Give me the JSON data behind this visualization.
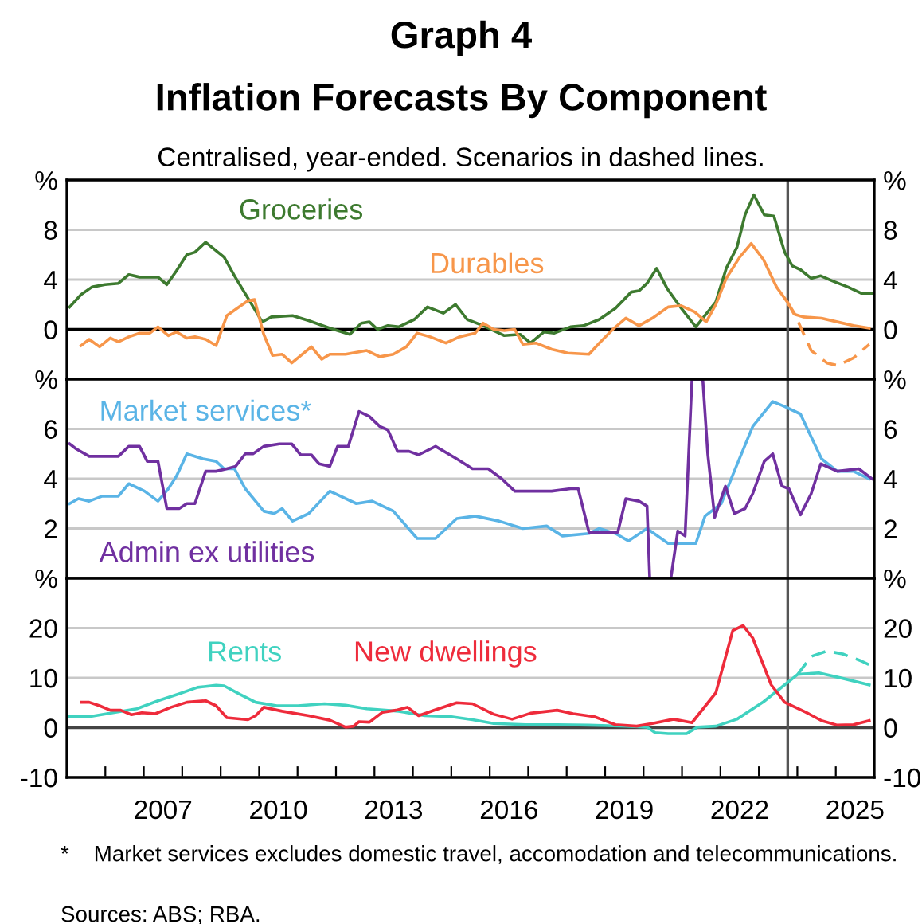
{
  "chart_data": [
    {
      "type": "line",
      "title": "Graph 4\nInflation Forecasts By Component",
      "subtitle": "Centralised, year-ended. Scenarios in dashed lines.",
      "xlim": [
        2005.0,
        2026.0
      ],
      "ylim": [
        -4,
        12
      ],
      "yticks": [
        0,
        4,
        8,
        {
          "value": 12,
          "label": "%"
        }
      ],
      "y2lim": [
        -4,
        12
      ],
      "y2ticks": [
        0,
        4,
        8,
        {
          "value": 12,
          "label": "%"
        }
      ],
      "tick_labels": "y",
      "grid": "y",
      "legend": false,
      "ref_lines": [
        {
          "axis": "y",
          "value": 0,
          "color": "#000000"
        },
        {
          "axis": "x",
          "value": 2023.75,
          "color": "#555555"
        }
      ],
      "series": [
        {
          "name": "Groceries",
          "color": "#3d7a2f",
          "x": [
            2005.07,
            2005.37,
            2005.65,
            2005.99,
            2006.34,
            2006.61,
            2006.89,
            2007.37,
            2007.6,
            2007.85,
            2008.12,
            2008.33,
            2008.61,
            2009.09,
            2009.36,
            2009.77,
            2010.08,
            2010.32,
            2010.87,
            2011.29,
            2011.84,
            2012.36,
            2012.66,
            2012.87,
            2013.08,
            2013.35,
            2013.63,
            2014.04,
            2014.38,
            2014.79,
            2015.11,
            2015.41,
            2015.83,
            2016.38,
            2016.79,
            2017.06,
            2017.41,
            2017.68,
            2018.1,
            2018.44,
            2018.85,
            2019.27,
            2019.68,
            2019.88,
            2020.09,
            2020.34,
            2020.61,
            2020.98,
            2021.36,
            2021.67,
            2021.88,
            2022.15,
            2022.43,
            2022.64,
            2022.87,
            2023.14,
            2023.39,
            2023.67,
            2023.87,
            2024.08,
            2024.36,
            2024.61,
            2024.91,
            2025.32,
            2025.66,
            2025.94
          ],
          "values": [
            1.8,
            2.8,
            3.4,
            3.6,
            3.7,
            4.4,
            4.2,
            4.2,
            3.6,
            4.7,
            6.0,
            6.2,
            7.0,
            5.8,
            4.3,
            2.2,
            0.6,
            1.0,
            1.1,
            0.7,
            0.1,
            -0.4,
            0.5,
            0.6,
            0.0,
            0.3,
            0.2,
            0.8,
            1.8,
            1.3,
            2.0,
            0.8,
            0.3,
            -0.5,
            -0.4,
            -1.1,
            -0.2,
            -0.3,
            0.2,
            0.3,
            0.8,
            1.7,
            3.0,
            3.1,
            3.7,
            4.9,
            3.3,
            1.7,
            0.2,
            1.4,
            2.2,
            4.9,
            6.6,
            9.2,
            10.8,
            9.2,
            9.1,
            6.2,
            5.1,
            4.8,
            4.1,
            4.3,
            3.9,
            3.4,
            2.9,
            2.9
          ]
        },
        {
          "name": "Durables",
          "color": "#f7964a",
          "x": [
            2005.37,
            2005.58,
            2005.85,
            2006.13,
            2006.34,
            2006.61,
            2006.89,
            2007.16,
            2007.37,
            2007.64,
            2007.85,
            2008.12,
            2008.33,
            2008.61,
            2008.88,
            2009.16,
            2009.43,
            2009.71,
            2009.88,
            2010.12,
            2010.35,
            2010.6,
            2010.85,
            2011.36,
            2011.63,
            2011.84,
            2012.25,
            2012.8,
            2013.14,
            2013.49,
            2013.83,
            2014.11,
            2014.45,
            2014.86,
            2015.21,
            2015.62,
            2015.83,
            2016.1,
            2016.38,
            2016.65,
            2016.86,
            2017.2,
            2017.61,
            2018.03,
            2018.58,
            2018.85,
            2019.2,
            2019.54,
            2019.88,
            2020.23,
            2020.64,
            2020.98,
            2021.33,
            2021.63,
            2021.88,
            2022.15,
            2022.5,
            2022.8,
            2023.12,
            2023.46,
            2023.74,
            2023.94,
            2024.15,
            2024.63,
            2025.04,
            2025.46,
            2025.87
          ],
          "values": [
            -1.3,
            -0.8,
            -1.4,
            -0.7,
            -1.0,
            -0.6,
            -0.3,
            -0.3,
            0.2,
            -0.5,
            -0.2,
            -0.7,
            -0.6,
            -0.8,
            -1.3,
            1.1,
            1.7,
            2.3,
            2.4,
            -0.4,
            -2.1,
            -2.0,
            -2.7,
            -1.4,
            -2.4,
            -2.0,
            -2.0,
            -1.7,
            -2.2,
            -2.0,
            -1.4,
            -0.3,
            -0.6,
            -1.1,
            -0.6,
            -0.3,
            0.5,
            0.0,
            -0.1,
            0.0,
            -1.2,
            -1.1,
            -1.6,
            -1.9,
            -2.0,
            -1.1,
            0.0,
            0.9,
            0.3,
            0.9,
            1.8,
            1.9,
            1.4,
            0.6,
            2.0,
            4.1,
            5.8,
            6.9,
            5.6,
            3.4,
            2.2,
            1.2,
            1.0,
            0.9,
            0.6,
            0.3,
            0.1
          ]
        },
        {
          "color": "#f7964a",
          "line_style": "dashed",
          "x": [
            2023.74,
            2024.01,
            2024.36,
            2024.77,
            2025.04,
            2025.46,
            2025.87
          ],
          "values": [
            2.2,
            0.7,
            -1.7,
            -2.7,
            -2.9,
            -2.3,
            -1.2
          ]
        }
      ]
    },
    {
      "type": "line",
      "xlim": [
        2005.0,
        2026.0
      ],
      "ylim": [
        0,
        8
      ],
      "yticks": [
        2,
        4,
        6,
        {
          "value": 8,
          "label": "%"
        }
      ],
      "y2lim": [
        0,
        8
      ],
      "y2ticks": [
        2,
        4,
        6,
        {
          "value": 8,
          "label": "%"
        }
      ],
      "tick_labels": "y",
      "grid": "y",
      "legend": false,
      "ref_lines": [
        {
          "axis": "x",
          "value": 2023.75,
          "color": "#555555"
        }
      ],
      "series": [
        {
          "name": "Market services*",
          "color": "#5ab4e6",
          "x": [
            2005.07,
            2005.3,
            2005.58,
            2005.92,
            2006.34,
            2006.61,
            2007.02,
            2007.37,
            2007.64,
            2007.85,
            2008.12,
            2008.54,
            2008.88,
            2009.09,
            2009.36,
            2009.64,
            2010.12,
            2010.39,
            2010.6,
            2010.87,
            2011.29,
            2011.84,
            2012.53,
            2012.94,
            2013.49,
            2014.11,
            2014.59,
            2015.14,
            2015.62,
            2016.24,
            2016.86,
            2017.48,
            2017.89,
            2018.58,
            2018.85,
            2019.27,
            2019.61,
            2020.09,
            2020.64,
            2020.98,
            2021.36,
            2021.6,
            2022.02,
            2022.36,
            2022.84,
            2023.36,
            2023.67,
            2024.08,
            2024.63,
            2025.04,
            2025.46,
            2025.87
          ],
          "values": [
            3.0,
            3.2,
            3.1,
            3.3,
            3.3,
            3.8,
            3.5,
            3.1,
            3.6,
            4.1,
            5.0,
            4.8,
            4.7,
            4.4,
            4.4,
            3.6,
            2.7,
            2.6,
            2.8,
            2.3,
            2.6,
            3.5,
            3.0,
            3.1,
            2.7,
            1.6,
            1.6,
            2.4,
            2.5,
            2.3,
            2.0,
            2.1,
            1.7,
            1.8,
            2.0,
            1.8,
            1.5,
            2.0,
            1.4,
            1.4,
            1.4,
            2.5,
            3.0,
            4.3,
            6.1,
            7.1,
            6.9,
            6.6,
            4.8,
            4.3,
            4.3,
            4.0
          ]
        },
        {
          "name": "Admin ex utilities",
          "color": "#7030a0",
          "x": [
            2005.07,
            2005.24,
            2005.58,
            2005.99,
            2006.34,
            2006.61,
            2006.89,
            2007.09,
            2007.37,
            2007.6,
            2007.92,
            2008.12,
            2008.33,
            2008.61,
            2008.88,
            2009.16,
            2009.39,
            2009.64,
            2009.84,
            2010.12,
            2010.53,
            2010.85,
            2011.08,
            2011.36,
            2011.56,
            2011.84,
            2012.04,
            2012.32,
            2012.6,
            2012.87,
            2013.14,
            2013.35,
            2013.6,
            2013.9,
            2014.15,
            2014.59,
            2015.14,
            2015.55,
            2015.96,
            2016.31,
            2016.65,
            2017.06,
            2017.61,
            2018.1,
            2018.3,
            2018.58,
            2019.33,
            2019.54,
            2019.88,
            2020.09,
            2020.16,
            2020.71,
            2020.89,
            2021.08,
            2021.26,
            2021.54,
            2021.67,
            2021.85,
            2022.13,
            2022.36,
            2022.64,
            2022.84,
            2023.14,
            2023.36,
            2023.6,
            2023.78,
            2024.08,
            2024.36,
            2024.61,
            2025.04,
            2025.6,
            2025.94
          ],
          "values": [
            5.4,
            5.2,
            4.9,
            4.9,
            4.9,
            5.3,
            5.3,
            4.7,
            4.7,
            2.8,
            2.8,
            3.0,
            3.0,
            4.3,
            4.3,
            4.4,
            4.5,
            5.0,
            5.0,
            5.3,
            5.4,
            5.4,
            4.96,
            4.96,
            4.6,
            4.5,
            5.3,
            5.3,
            6.7,
            6.5,
            6.1,
            5.96,
            5.1,
            5.1,
            4.96,
            5.3,
            4.8,
            4.4,
            4.4,
            4.0,
            3.5,
            3.5,
            3.5,
            3.6,
            3.6,
            1.85,
            1.85,
            3.2,
            3.1,
            2.9,
            0.0,
            0.0,
            1.9,
            1.7,
            8.0,
            8.0,
            5.0,
            2.45,
            3.7,
            2.6,
            2.8,
            3.4,
            4.7,
            5.0,
            3.7,
            3.6,
            2.55,
            3.4,
            4.6,
            4.3,
            4.4,
            4.0
          ]
        }
      ]
    },
    {
      "type": "line",
      "xlim": [
        2005.0,
        2026.0
      ],
      "ylim": [
        -10,
        30
      ],
      "yticks": [
        -10,
        0,
        10,
        20,
        {
          "value": 30,
          "label": "%"
        }
      ],
      "y2lim": [
        -10,
        30
      ],
      "y2ticks": [
        -10,
        0,
        10,
        20,
        {
          "value": 30,
          "label": "%"
        }
      ],
      "xticks": [
        {
          "value": 2006,
          "label": null
        },
        {
          "value": 2007,
          "label": null
        },
        {
          "value": 2007.5,
          "label": "2007"
        },
        {
          "value": 2008,
          "label": null
        },
        {
          "value": 2009,
          "label": null
        },
        {
          "value": 2010,
          "label": null
        },
        {
          "value": 2010.5,
          "label": "2010"
        },
        {
          "value": 2011,
          "label": null
        },
        {
          "value": 2012,
          "label": null
        },
        {
          "value": 2013,
          "label": null
        },
        {
          "value": 2013.5,
          "label": "2013"
        },
        {
          "value": 2014,
          "label": null
        },
        {
          "value": 2015,
          "label": null
        },
        {
          "value": 2016,
          "label": null
        },
        {
          "value": 2016.5,
          "label": "2016"
        },
        {
          "value": 2017,
          "label": null
        },
        {
          "value": 2018,
          "label": null
        },
        {
          "value": 2019,
          "label": null
        },
        {
          "value": 2019.5,
          "label": "2019"
        },
        {
          "value": 2020,
          "label": null
        },
        {
          "value": 2021,
          "label": null
        },
        {
          "value": 2022,
          "label": null
        },
        {
          "value": 2022.5,
          "label": "2022"
        },
        {
          "value": 2023,
          "label": null
        },
        {
          "value": 2024,
          "label": null
        },
        {
          "value": 2025,
          "label": null
        },
        {
          "value": 2025.5,
          "label": "2025"
        }
      ],
      "grid": "y",
      "legend": false,
      "ref_lines": [
        {
          "axis": "y",
          "value": 0,
          "color": "#444444"
        },
        {
          "axis": "x",
          "value": 2023.75,
          "color": "#555555"
        }
      ],
      "annotations": [
        "*    Market services excludes domestic travel, accomodation and telecommunications.",
        "Sources: ABS; RBA."
      ],
      "series": [
        {
          "name": "Rents",
          "color": "#40d2c0",
          "x": [
            2005.07,
            2005.58,
            2006.2,
            2006.82,
            2007.37,
            2007.92,
            2008.4,
            2008.88,
            2009.09,
            2009.5,
            2009.91,
            2010.46,
            2011.01,
            2011.7,
            2012.25,
            2012.8,
            2013.63,
            2014.31,
            2015.0,
            2015.55,
            2016.1,
            2016.93,
            2017.75,
            2018.58,
            2019.54,
            2020.09,
            2020.3,
            2020.64,
            2021.12,
            2021.4,
            2021.88,
            2022.43,
            2023.12,
            2023.67,
            2024.01,
            2024.56,
            2025.18,
            2025.87
          ],
          "values": [
            2.2,
            2.2,
            3.0,
            3.8,
            5.4,
            6.8,
            8.1,
            8.5,
            8.4,
            6.7,
            5.1,
            4.4,
            4.4,
            4.8,
            4.5,
            3.8,
            3.3,
            2.4,
            2.2,
            1.6,
            0.85,
            0.6,
            0.6,
            0.5,
            0.3,
            0.1,
            -1.0,
            -1.2,
            -1.2,
            0.1,
            0.3,
            1.7,
            5.2,
            8.6,
            10.7,
            11.0,
            9.9,
            8.6
          ]
        },
        {
          "color": "#40d2c0",
          "line_style": "dashed",
          "x": [
            2024.01,
            2024.36,
            2024.77,
            2025.18,
            2025.66,
            2025.87
          ],
          "values": [
            10.7,
            14.3,
            15.4,
            14.8,
            13.4,
            12.6
          ]
        },
        {
          "name": "New dwellings",
          "color": "#ee2b3b",
          "x": [
            2005.37,
            2005.58,
            2005.85,
            2006.13,
            2006.4,
            2006.68,
            2006.95,
            2007.3,
            2007.71,
            2008.12,
            2008.61,
            2008.88,
            2009.16,
            2009.71,
            2009.91,
            2010.12,
            2010.6,
            2011.29,
            2011.84,
            2012.25,
            2012.46,
            2012.6,
            2012.87,
            2013.21,
            2013.56,
            2013.86,
            2014.15,
            2014.59,
            2015.14,
            2015.55,
            2016.1,
            2016.58,
            2017.06,
            2017.75,
            2018.17,
            2018.72,
            2019.27,
            2019.82,
            2020.23,
            2020.78,
            2021.26,
            2021.88,
            2022.32,
            2022.59,
            2022.84,
            2023.32,
            2023.67,
            2024.22,
            2024.63,
            2025.04,
            2025.46,
            2025.87
          ],
          "values": [
            5.1,
            5.1,
            4.4,
            3.5,
            3.5,
            2.6,
            3.0,
            2.8,
            4.1,
            5.1,
            5.4,
            4.4,
            2.0,
            1.6,
            2.4,
            4.1,
            3.3,
            2.4,
            1.5,
            0.1,
            0.3,
            1.2,
            1.1,
            3.1,
            3.5,
            4.1,
            2.4,
            3.6,
            5.0,
            4.8,
            2.7,
            1.7,
            2.9,
            3.5,
            2.8,
            2.2,
            0.6,
            0.3,
            0.85,
            1.7,
            1.0,
            7.0,
            19.5,
            20.5,
            18.0,
            8.6,
            5.1,
            3.1,
            1.4,
            0.5,
            0.6,
            1.4
          ]
        }
      ]
    }
  ]
}
